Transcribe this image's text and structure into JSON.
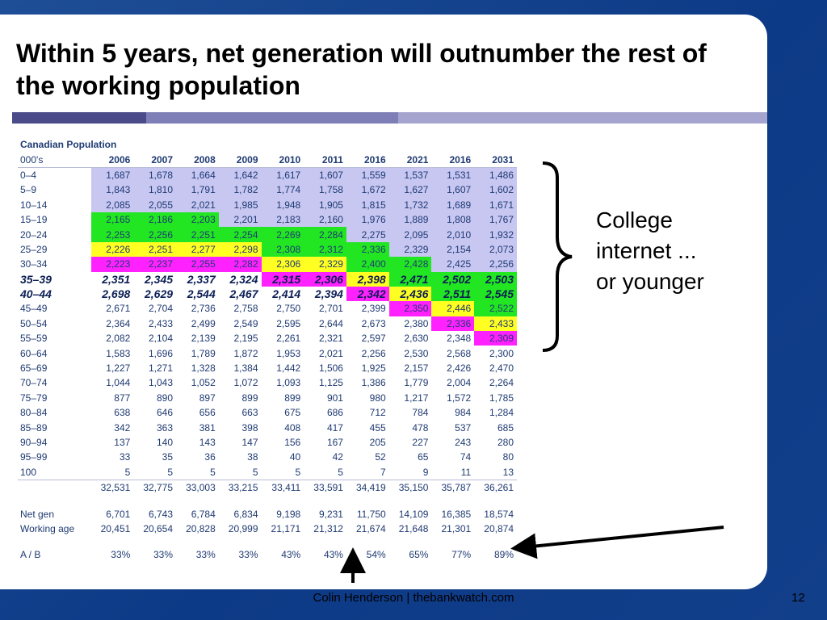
{
  "slide": {
    "title": "Within 5 years, net generation will outnumber the rest of the working population",
    "side_note": [
      "College",
      "internet ...",
      "or younger"
    ],
    "footer": "Colin Henderson | thebankwatch.com",
    "page_number": "12"
  },
  "table": {
    "caption": "Canadian Population",
    "unit_label": "000's",
    "years": [
      "2006",
      "2007",
      "2008",
      "2009",
      "2010",
      "2011",
      "2016",
      "2021",
      "2016",
      "2031"
    ],
    "rows": [
      {
        "label": "0–4",
        "bold": false,
        "values": [
          "1,687",
          "1,678",
          "1,664",
          "1,642",
          "1,617",
          "1,607",
          "1,559",
          "1,537",
          "1,531",
          "1,486"
        ],
        "colors": [
          "lav",
          "lav",
          "lav",
          "lav",
          "lav",
          "lav",
          "lav",
          "lav",
          "lav",
          "lav"
        ]
      },
      {
        "label": "5–9",
        "bold": false,
        "values": [
          "1,843",
          "1,810",
          "1,791",
          "1,782",
          "1,774",
          "1,758",
          "1,672",
          "1,627",
          "1,607",
          "1,602"
        ],
        "colors": [
          "lav",
          "lav",
          "lav",
          "lav",
          "lav",
          "lav",
          "lav",
          "lav",
          "lav",
          "lav"
        ]
      },
      {
        "label": "10–14",
        "bold": false,
        "values": [
          "2,085",
          "2,055",
          "2,021",
          "1,985",
          "1,948",
          "1,905",
          "1,815",
          "1,732",
          "1,689",
          "1,671"
        ],
        "colors": [
          "lav",
          "lav",
          "lav",
          "lav",
          "lav",
          "lav",
          "lav",
          "lav",
          "lav",
          "lav"
        ]
      },
      {
        "label": "15–19",
        "bold": false,
        "values": [
          "2,165",
          "2,186",
          "2,203",
          "2,201",
          "2,183",
          "2,160",
          "1,976",
          "1,889",
          "1,808",
          "1,767"
        ],
        "colors": [
          "green",
          "green",
          "green",
          "lav",
          "lav",
          "lav",
          "lav",
          "lav",
          "lav",
          "lav"
        ]
      },
      {
        "label": "20–24",
        "bold": false,
        "values": [
          "2,253",
          "2,256",
          "2,251",
          "2,254",
          "2,269",
          "2,284",
          "2,275",
          "2,095",
          "2,010",
          "1,932"
        ],
        "colors": [
          "green",
          "green",
          "green",
          "green",
          "green",
          "green",
          "lav",
          "lav",
          "lav",
          "lav"
        ]
      },
      {
        "label": "25–29",
        "bold": false,
        "values": [
          "2,226",
          "2,251",
          "2,277",
          "2,298",
          "2,308",
          "2,312",
          "2,336",
          "2,329",
          "2,154",
          "2,073"
        ],
        "colors": [
          "yellow",
          "yellow",
          "yellow",
          "yellow",
          "green",
          "green",
          "green",
          "lav",
          "lav",
          "lav"
        ]
      },
      {
        "label": "30–34",
        "bold": false,
        "values": [
          "2,223",
          "2,237",
          "2,255",
          "2,282",
          "2,306",
          "2,329",
          "2,400",
          "2,428",
          "2,425",
          "2,256"
        ],
        "colors": [
          "mag",
          "mag",
          "mag",
          "mag",
          "yellow",
          "yellow",
          "green",
          "green",
          "lav",
          "lav"
        ]
      },
      {
        "label": "35–39",
        "bold": true,
        "values": [
          "2,351",
          "2,345",
          "2,337",
          "2,324",
          "2,315",
          "2,306",
          "2,398",
          "2,471",
          "2,502",
          "2,503"
        ],
        "colors": [
          "",
          "",
          "",
          "",
          "mag",
          "mag",
          "yellow",
          "green",
          "green",
          "green"
        ]
      },
      {
        "label": "40–44",
        "bold": true,
        "values": [
          "2,698",
          "2,629",
          "2,544",
          "2,467",
          "2,414",
          "2,394",
          "2,342",
          "2,436",
          "2,511",
          "2,545"
        ],
        "colors": [
          "",
          "",
          "",
          "",
          "",
          "",
          "mag",
          "yellow",
          "green",
          "green"
        ]
      },
      {
        "label": "45–49",
        "bold": false,
        "values": [
          "2,671",
          "2,704",
          "2,736",
          "2,758",
          "2,750",
          "2,701",
          "2,399",
          "2,350",
          "2,446",
          "2,522"
        ],
        "colors": [
          "",
          "",
          "",
          "",
          "",
          "",
          "",
          "mag",
          "yellow",
          "green"
        ]
      },
      {
        "label": "50–54",
        "bold": false,
        "values": [
          "2,364",
          "2,433",
          "2,499",
          "2,549",
          "2,595",
          "2,644",
          "2,673",
          "2,380",
          "2,336",
          "2,433"
        ],
        "colors": [
          "",
          "",
          "",
          "",
          "",
          "",
          "",
          "",
          "mag",
          "yellow"
        ]
      },
      {
        "label": "55–59",
        "bold": false,
        "values": [
          "2,082",
          "2,104",
          "2,139",
          "2,195",
          "2,261",
          "2,321",
          "2,597",
          "2,630",
          "2,348",
          "2,309"
        ],
        "colors": [
          "",
          "",
          "",
          "",
          "",
          "",
          "",
          "",
          "",
          "mag"
        ]
      },
      {
        "label": "60–64",
        "bold": false,
        "values": [
          "1,583",
          "1,696",
          "1,789",
          "1,872",
          "1,953",
          "2,021",
          "2,256",
          "2,530",
          "2,568",
          "2,300"
        ],
        "colors": [
          "",
          "",
          "",
          "",
          "",
          "",
          "",
          "",
          "",
          ""
        ]
      },
      {
        "label": "65–69",
        "bold": false,
        "values": [
          "1,227",
          "1,271",
          "1,328",
          "1,384",
          "1,442",
          "1,506",
          "1,925",
          "2,157",
          "2,426",
          "2,470"
        ],
        "colors": [
          "",
          "",
          "",
          "",
          "",
          "",
          "",
          "",
          "",
          ""
        ]
      },
      {
        "label": "70–74",
        "bold": false,
        "values": [
          "1,044",
          "1,043",
          "1,052",
          "1,072",
          "1,093",
          "1,125",
          "1,386",
          "1,779",
          "2,004",
          "2,264"
        ],
        "colors": [
          "",
          "",
          "",
          "",
          "",
          "",
          "",
          "",
          "",
          ""
        ]
      },
      {
        "label": "75–79",
        "bold": false,
        "values": [
          "877",
          "890",
          "897",
          "899",
          "899",
          "901",
          "980",
          "1,217",
          "1,572",
          "1,785"
        ],
        "colors": [
          "",
          "",
          "",
          "",
          "",
          "",
          "",
          "",
          "",
          ""
        ]
      },
      {
        "label": "80–84",
        "bold": false,
        "values": [
          "638",
          "646",
          "656",
          "663",
          "675",
          "686",
          "712",
          "784",
          "984",
          "1,284"
        ],
        "colors": [
          "",
          "",
          "",
          "",
          "",
          "",
          "",
          "",
          "",
          ""
        ]
      },
      {
        "label": "85–89",
        "bold": false,
        "values": [
          "342",
          "363",
          "381",
          "398",
          "408",
          "417",
          "455",
          "478",
          "537",
          "685"
        ],
        "colors": [
          "",
          "",
          "",
          "",
          "",
          "",
          "",
          "",
          "",
          ""
        ]
      },
      {
        "label": "90–94",
        "bold": false,
        "values": [
          "137",
          "140",
          "143",
          "147",
          "156",
          "167",
          "205",
          "227",
          "243",
          "280"
        ],
        "colors": [
          "",
          "",
          "",
          "",
          "",
          "",
          "",
          "",
          "",
          ""
        ]
      },
      {
        "label": "95–99",
        "bold": false,
        "values": [
          "33",
          "35",
          "36",
          "38",
          "40",
          "42",
          "52",
          "65",
          "74",
          "80"
        ],
        "colors": [
          "",
          "",
          "",
          "",
          "",
          "",
          "",
          "",
          "",
          ""
        ]
      },
      {
        "label": "100",
        "bold": false,
        "values": [
          "5",
          "5",
          "5",
          "5",
          "5",
          "5",
          "7",
          "9",
          "11",
          "13"
        ],
        "colors": [
          "",
          "",
          "",
          "",
          "",
          "",
          "",
          "",
          "",
          ""
        ]
      }
    ],
    "total": [
      "32,531",
      "32,775",
      "33,003",
      "33,215",
      "33,411",
      "33,591",
      "34,419",
      "35,150",
      "35,787",
      "36,261"
    ],
    "net_gen": {
      "label": "Net gen",
      "values": [
        "6,701",
        "6,743",
        "6,784",
        "6,834",
        "9,198",
        "9,231",
        "11,750",
        "14,109",
        "16,385",
        "18,574"
      ]
    },
    "working_age": {
      "label": "Working age",
      "values": [
        "20,451",
        "20,654",
        "20,828",
        "20,999",
        "21,171",
        "21,312",
        "21,674",
        "21,648",
        "21,301",
        "20,874"
      ]
    },
    "ratio": {
      "label": "A / B",
      "values": [
        "33%",
        "33%",
        "33%",
        "33%",
        "43%",
        "43%",
        "54%",
        "65%",
        "77%",
        "89%"
      ]
    }
  },
  "colors": {
    "lav": "#c7c7f2",
    "green": "#22e622",
    "yellow": "#ffff22",
    "mag": "#ff22ff"
  }
}
